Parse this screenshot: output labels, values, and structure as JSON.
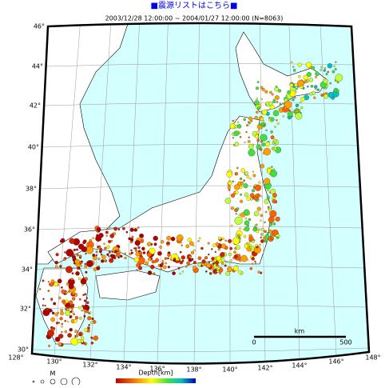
{
  "header": {
    "link": "■震源リストはこちら■",
    "period": "2003/12/28 12:00:00 ~ 2004/01/27 12:00:00 (N=8063)"
  },
  "lat_labels": [
    "30°",
    "32°",
    "34°",
    "36°",
    "38°",
    "40°",
    "42°",
    "44°",
    "46°"
  ],
  "lon_labels": [
    "128°",
    "130°",
    "132°",
    "134°",
    "136°",
    "138°",
    "140°",
    "142°",
    "144°",
    "146°",
    "148°"
  ],
  "scale": {
    "start": "0",
    "unit": "km",
    "end": "500"
  },
  "legend": {
    "magnitude": "M",
    "depth": "Depth[km]"
  }
}
